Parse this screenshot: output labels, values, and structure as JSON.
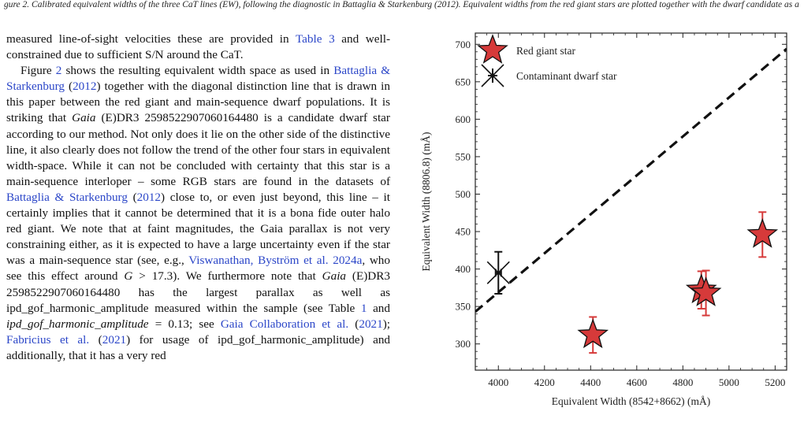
{
  "caption": "gure 2. Calibrated equivalent widths of the three CaT lines (EW), following the diagnostic in Battaglia & Starkenburg (2012). Equivalent widths from the red giant stars are plotted together with the dwarf candidate as a contrast.",
  "text": {
    "p1": [
      {
        "t": "measured line-of-sight velocities these are provided in "
      },
      {
        "t": "Table 3",
        "link": true
      },
      {
        "t": " and well-constrained due to sufficient S/N around the CaT."
      }
    ],
    "p2": [
      {
        "t": "Figure "
      },
      {
        "t": "2",
        "link": true
      },
      {
        "t": " shows the resulting equivalent width space as used in "
      },
      {
        "t": "Battaglia & Starkenburg",
        "link": true
      },
      {
        "t": " ("
      },
      {
        "t": "2012",
        "link": true
      },
      {
        "t": ") together with the diagonal distinction line that is drawn in this paper between the red giant and main-sequence dwarf populations. It is striking that "
      },
      {
        "t": "Gaia",
        "italic": true
      },
      {
        "t": " (E)DR3 2598522907060164480 is a candidate dwarf star according to our method. Not only does it lie on the other side of the distinctive line, it also clearly does not follow the trend of the other four stars in equivalent width-space. While it can not be concluded with certainty that this star is a main-sequence interloper – some RGB stars are found in the datasets of "
      },
      {
        "t": "Battaglia & Starkenburg",
        "link": true
      },
      {
        "t": " ("
      },
      {
        "t": "2012",
        "link": true
      },
      {
        "t": ") close to, or even just beyond, this line – it certainly implies that it cannot be determined that it is a bona fide outer halo red giant. We note that at faint magnitudes, the Gaia parallax is not very constraining either, as it is expected to have a large uncertainty even if the star was a main-sequence star (see, e.g., "
      },
      {
        "t": "Viswanathan, Byström et al. 2024a",
        "link": true
      },
      {
        "t": ", who see this effect around "
      },
      {
        "t": "G",
        "italic": true
      },
      {
        "t": " > 17.3). We furthermore note that "
      },
      {
        "t": "Gaia",
        "italic": true
      },
      {
        "t": " (E)DR3 2598522907060164480 has the largest parallax as well as ipd_gof_harmonic_amplitude measured within the sample (see Table "
      },
      {
        "t": "1",
        "link": true
      },
      {
        "t": " and "
      },
      {
        "t": "ipd_gof_harmonic_amplitude",
        "italic": true
      },
      {
        "t": " = 0.13; see "
      },
      {
        "t": "Gaia Collaboration et al.",
        "link": true
      },
      {
        "t": " ("
      },
      {
        "t": "2021",
        "link": true
      },
      {
        "t": "); "
      },
      {
        "t": "Fabricius et al.",
        "link": true
      },
      {
        "t": " ("
      },
      {
        "t": "2021",
        "link": true
      },
      {
        "t": ") for usage of ipd_gof_harmonic_amplitude) and additionally, that it has a very red"
      }
    ]
  },
  "chart_data": {
    "type": "scatter",
    "xlabel": "Equivalent Width (8542+8662) (mÅ)",
    "ylabel": "Equivalent Width (8806.8) (mÅ)",
    "xlim": [
      3900,
      5250
    ],
    "ylim": [
      265,
      715
    ],
    "xticks": [
      4000,
      4200,
      4400,
      4600,
      4800,
      5000,
      5200
    ],
    "yticks": [
      300,
      350,
      400,
      450,
      500,
      550,
      600,
      650,
      700
    ],
    "colors": {
      "giant_fill": "#d63a3a",
      "giant_edge": "#111111",
      "error_bar": "#d63a3a",
      "dwarf": "#111111",
      "line": "#111111"
    },
    "series": [
      {
        "name": "Red giant star",
        "marker": "star",
        "points": [
          {
            "x": 4410,
            "y": 312,
            "xerr": 25,
            "yerr": 24
          },
          {
            "x": 4880,
            "y": 372,
            "xerr": 20,
            "yerr": 25
          },
          {
            "x": 4900,
            "y": 368,
            "xerr": 20,
            "yerr": 30
          },
          {
            "x": 5145,
            "y": 446,
            "xerr": 15,
            "yerr": 30
          }
        ]
      },
      {
        "name": "Contaminant dwarf star",
        "marker": "x",
        "points": [
          {
            "x": 4000,
            "y": 395,
            "xerr": 12,
            "yerr": 28
          }
        ]
      }
    ],
    "division_line": {
      "x": [
        3900,
        5250
      ],
      "y": [
        343,
        694
      ],
      "style": "dashed"
    },
    "legend": {
      "position": "top-left",
      "entries": [
        "Red giant star",
        "Contaminant dwarf star"
      ]
    }
  }
}
